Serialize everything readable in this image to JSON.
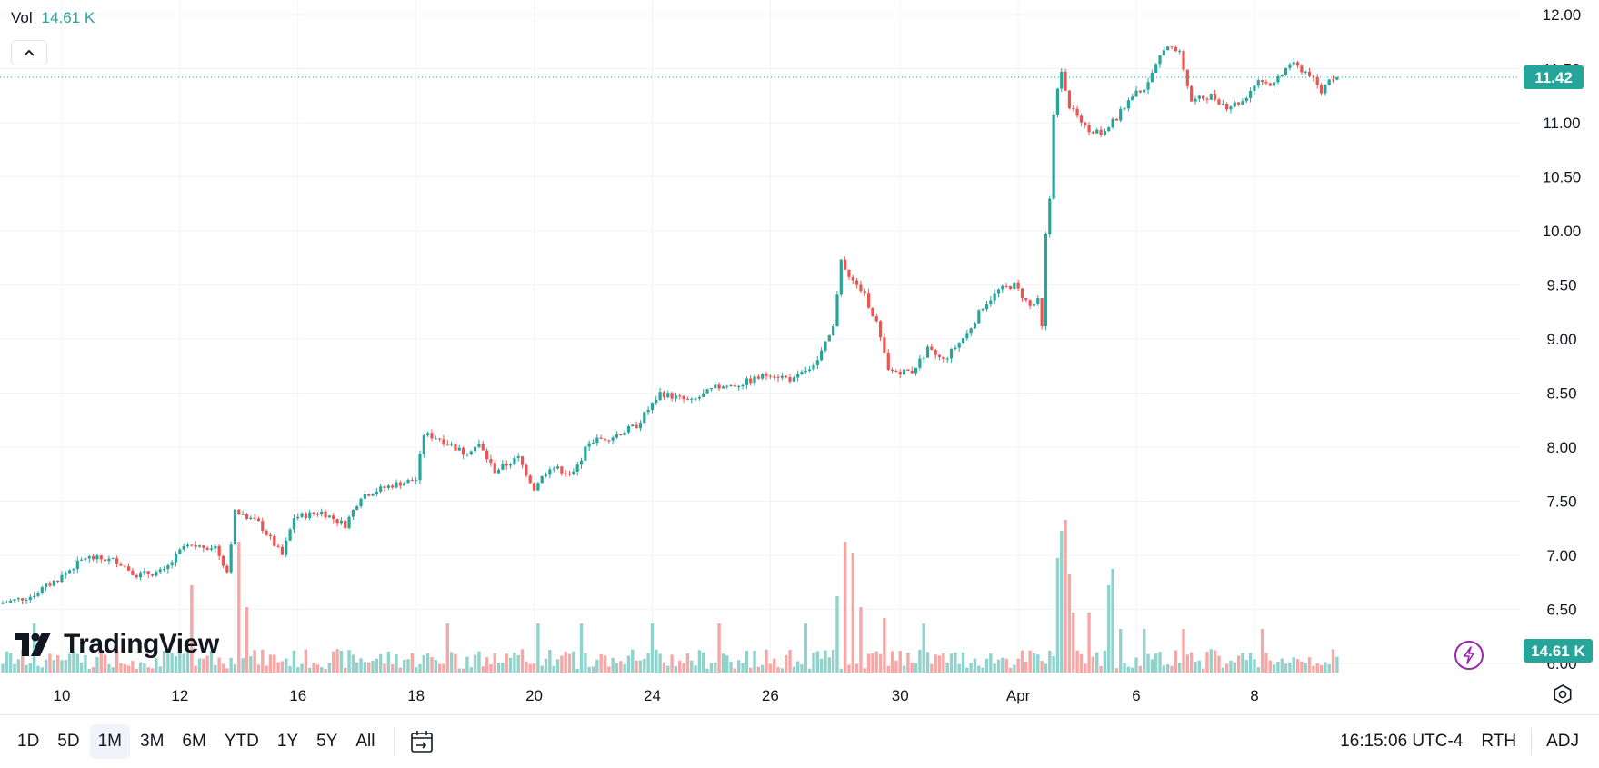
{
  "legend": {
    "label": "Vol",
    "value": "14.61 K"
  },
  "logo": {
    "text": "TradingView"
  },
  "colors": {
    "up": "#26a69a",
    "down": "#ef5350",
    "up_vol": "#92d2cc",
    "down_vol": "#f7a8a6",
    "grid": "#f0f3fa",
    "axis_text": "#131722"
  },
  "toolbar": {
    "ranges": [
      "1D",
      "5D",
      "1M",
      "3M",
      "6M",
      "YTD",
      "1Y",
      "5Y",
      "All"
    ],
    "active_range": "1M",
    "time": "16:15:06 UTC-4",
    "session": "RTH",
    "adj": "ADJ"
  },
  "icons": {
    "collapse": "chevron-up-icon",
    "goto_date": "calendar-goto-icon",
    "lightning": "lightning-icon",
    "settings": "gear-icon"
  },
  "chart_data": {
    "type": "candlestick",
    "y_axis": {
      "ticks": [
        "12.00",
        "11.50",
        "11.00",
        "10.50",
        "10.00",
        "9.50",
        "9.00",
        "8.50",
        "8.00",
        "7.50",
        "7.00",
        "6.50",
        "6.00"
      ],
      "ylim": [
        5.9,
        12.05
      ]
    },
    "x_axis": {
      "ticks": [
        "10",
        "12",
        "16",
        "18",
        "20",
        "24",
        "26",
        "30",
        "Apr",
        "6",
        "8"
      ]
    },
    "last_price": "11.42",
    "last_volume": "14.61 K",
    "anchors": [
      [
        0,
        6.55
      ],
      [
        8,
        6.62
      ],
      [
        15,
        6.78
      ],
      [
        22,
        6.98
      ],
      [
        30,
        6.95
      ],
      [
        35,
        6.82
      ],
      [
        42,
        6.85
      ],
      [
        47,
        7.08
      ],
      [
        55,
        7.08
      ],
      [
        58,
        6.85
      ],
      [
        60,
        7.4
      ],
      [
        66,
        7.3
      ],
      [
        72,
        7.0
      ],
      [
        75,
        7.35
      ],
      [
        82,
        7.4
      ],
      [
        88,
        7.28
      ],
      [
        92,
        7.55
      ],
      [
        100,
        7.65
      ],
      [
        106,
        7.7
      ],
      [
        108,
        8.12
      ],
      [
        112,
        8.08
      ],
      [
        118,
        7.95
      ],
      [
        122,
        8.02
      ],
      [
        126,
        7.78
      ],
      [
        132,
        7.9
      ],
      [
        136,
        7.62
      ],
      [
        140,
        7.82
      ],
      [
        146,
        7.75
      ],
      [
        150,
        8.05
      ],
      [
        156,
        8.1
      ],
      [
        162,
        8.2
      ],
      [
        168,
        8.5
      ],
      [
        176,
        8.42
      ],
      [
        182,
        8.55
      ],
      [
        188,
        8.58
      ],
      [
        196,
        8.68
      ],
      [
        202,
        8.62
      ],
      [
        208,
        8.8
      ],
      [
        212,
        9.1
      ],
      [
        214,
        9.75
      ],
      [
        216,
        9.55
      ],
      [
        220,
        9.4
      ],
      [
        223,
        9.15
      ],
      [
        226,
        8.7
      ],
      [
        232,
        8.7
      ],
      [
        236,
        8.9
      ],
      [
        240,
        8.8
      ],
      [
        246,
        9.05
      ],
      [
        250,
        9.3
      ],
      [
        254,
        9.45
      ],
      [
        258,
        9.5
      ],
      [
        262,
        9.3
      ],
      [
        264,
        9.35
      ],
      [
        265,
        9.1
      ],
      [
        266,
        9.95
      ],
      [
        267,
        10.3
      ],
      [
        268,
        11.1
      ],
      [
        270,
        11.5
      ],
      [
        272,
        11.15
      ],
      [
        276,
        10.95
      ],
      [
        280,
        10.9
      ],
      [
        284,
        11.05
      ],
      [
        288,
        11.25
      ],
      [
        292,
        11.35
      ],
      [
        296,
        11.7
      ],
      [
        300,
        11.65
      ],
      [
        303,
        11.2
      ],
      [
        308,
        11.25
      ],
      [
        312,
        11.15
      ],
      [
        316,
        11.2
      ],
      [
        320,
        11.4
      ],
      [
        324,
        11.35
      ],
      [
        328,
        11.55
      ],
      [
        333,
        11.45
      ],
      [
        336,
        11.28
      ],
      [
        338,
        11.42
      ]
    ],
    "volume_spikes": [
      [
        8,
        4.5
      ],
      [
        60,
        12
      ],
      [
        62,
        6
      ],
      [
        48,
        8
      ],
      [
        113,
        4.5
      ],
      [
        136,
        4.5
      ],
      [
        147,
        4.5
      ],
      [
        165,
        4.5
      ],
      [
        182,
        4.5
      ],
      [
        204,
        4.5
      ],
      [
        212,
        7
      ],
      [
        214,
        12
      ],
      [
        216,
        11
      ],
      [
        218,
        6
      ],
      [
        224,
        5
      ],
      [
        234,
        4.5
      ],
      [
        268,
        10.5
      ],
      [
        269,
        13
      ],
      [
        270,
        14
      ],
      [
        271,
        9
      ],
      [
        272,
        5.5
      ],
      [
        276,
        5.5
      ],
      [
        281,
        8
      ],
      [
        282,
        9.5
      ],
      [
        284,
        4
      ],
      [
        290,
        4
      ],
      [
        300,
        4
      ],
      [
        320,
        4
      ]
    ]
  }
}
